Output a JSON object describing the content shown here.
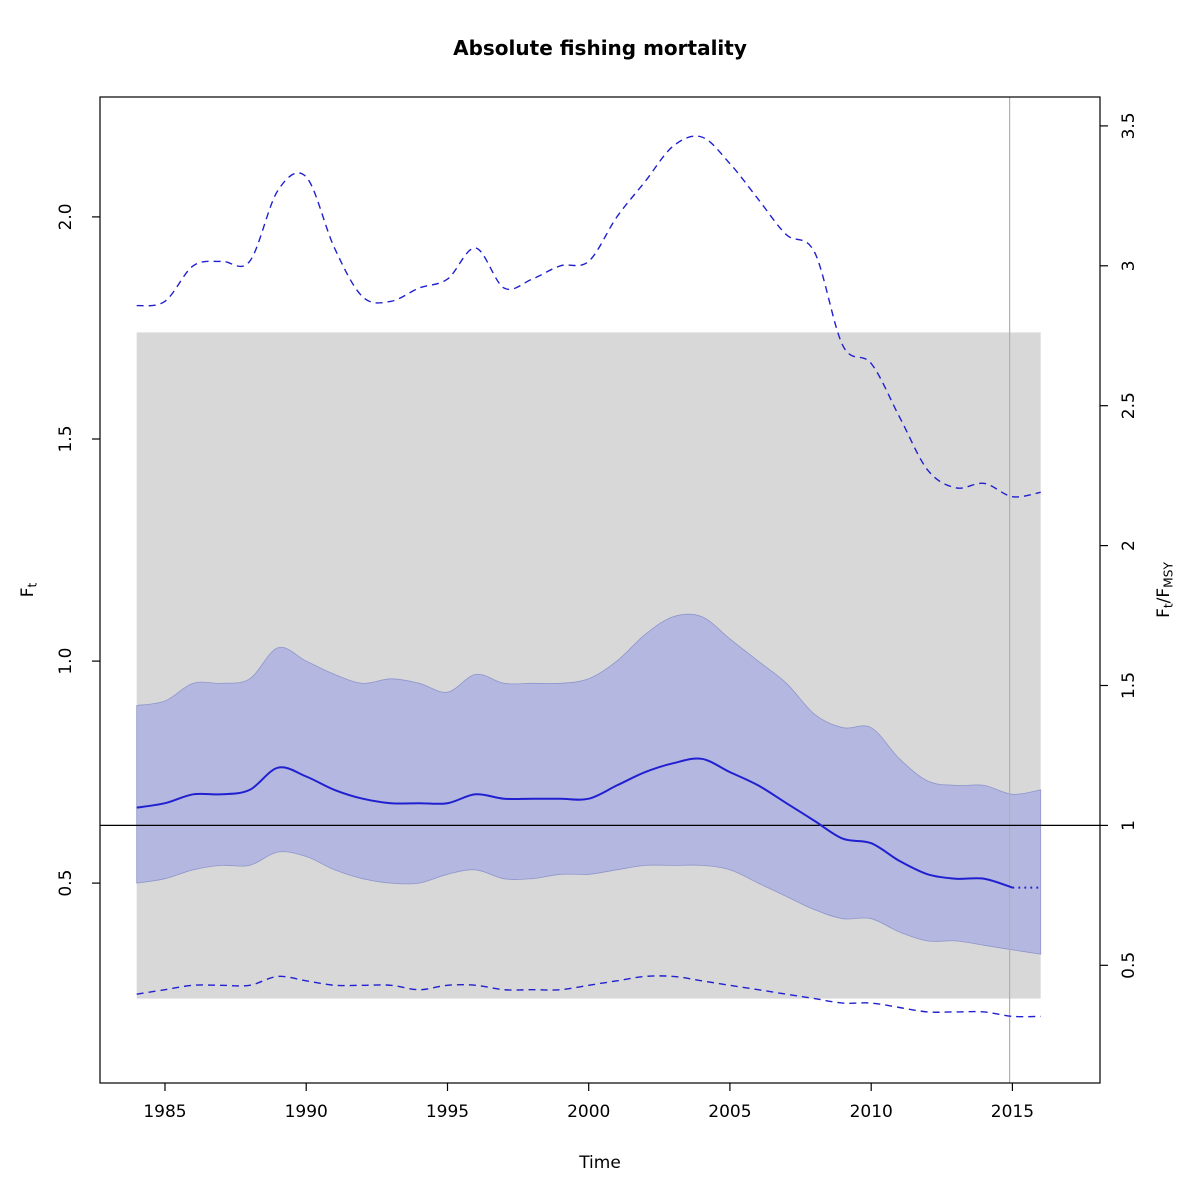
{
  "chart_data": {
    "type": "line",
    "title": "Absolute fishing mortality",
    "xlabel": "Time",
    "ylabel_left": "F_t",
    "ylabel_left_parts": [
      [
        "F",
        ""
      ],
      [
        "t",
        "sub"
      ]
    ],
    "ylabel_right": "F_t/F_MSY",
    "ylabel_right_parts": [
      [
        "F",
        ""
      ],
      [
        "t",
        "sub"
      ],
      [
        "/",
        ""
      ],
      [
        "F",
        ""
      ],
      [
        "MSY",
        "sub"
      ]
    ],
    "xlim": [
      1982.7,
      2018.1
    ],
    "ylim_left": [
      0.05,
      2.27
    ],
    "grid": false,
    "legend_position": "none",
    "x_ticks": [
      {
        "v": 1985,
        "label": "1985"
      },
      {
        "v": 1990,
        "label": "1990"
      },
      {
        "v": 1995,
        "label": "1995"
      },
      {
        "v": 2000,
        "label": "2000"
      },
      {
        "v": 2005,
        "label": "2005"
      },
      {
        "v": 2010,
        "label": "2010"
      },
      {
        "v": 2015,
        "label": "2015"
      }
    ],
    "y_ticks_left": [
      {
        "v": 0.5,
        "label": "0.5"
      },
      {
        "v": 1.0,
        "label": "1.0"
      },
      {
        "v": 1.5,
        "label": "1.5"
      },
      {
        "v": 2.0,
        "label": "2.0"
      }
    ],
    "y_ticks_right": [
      {
        "r": 0.5,
        "label": "0.5"
      },
      {
        "r": 1.0,
        "label": "1"
      },
      {
        "r": 1.5,
        "label": "1.5"
      },
      {
        "r": 2.0,
        "label": "2"
      },
      {
        "r": 2.5,
        "label": "2.5"
      },
      {
        "r": 3.0,
        "label": "3"
      },
      {
        "r": 3.5,
        "label": "3.5"
      }
    ],
    "fmsy": 0.63,
    "fmsy_ci": [
      0.24,
      1.74
    ],
    "vline_year": 2014.9,
    "years": [
      1984,
      1985,
      1986,
      1987,
      1988,
      1989,
      1990,
      1991,
      1992,
      1993,
      1994,
      1995,
      1996,
      1997,
      1998,
      1999,
      2000,
      2001,
      2002,
      2003,
      2004,
      2005,
      2006,
      2007,
      2008,
      2009,
      2010,
      2011,
      2012,
      2013,
      2014,
      2015,
      2016
    ],
    "series": [
      {
        "role": "median",
        "name": "F_t estimate (median)",
        "style": "solid",
        "dotted_from_year": 2015,
        "values": [
          0.67,
          0.68,
          0.7,
          0.7,
          0.71,
          0.76,
          0.74,
          0.71,
          0.69,
          0.68,
          0.68,
          0.68,
          0.7,
          0.69,
          0.69,
          0.69,
          0.69,
          0.72,
          0.75,
          0.77,
          0.78,
          0.75,
          0.72,
          0.68,
          0.64,
          0.6,
          0.59,
          0.55,
          0.52,
          0.51,
          0.51,
          0.49,
          0.49
        ]
      },
      {
        "role": "ci_upper",
        "name": "F_t 95% CI upper (shaded band)",
        "style": "band",
        "values": [
          0.9,
          0.91,
          0.95,
          0.95,
          0.96,
          1.03,
          1.0,
          0.97,
          0.95,
          0.96,
          0.95,
          0.93,
          0.97,
          0.95,
          0.95,
          0.95,
          0.96,
          1.0,
          1.06,
          1.1,
          1.1,
          1.05,
          1.0,
          0.95,
          0.88,
          0.85,
          0.85,
          0.78,
          0.73,
          0.72,
          0.72,
          0.7,
          0.71
        ]
      },
      {
        "role": "ci_lower",
        "name": "F_t 95% CI lower (shaded band)",
        "style": "band",
        "values": [
          0.5,
          0.51,
          0.53,
          0.54,
          0.54,
          0.57,
          0.56,
          0.53,
          0.51,
          0.5,
          0.5,
          0.52,
          0.53,
          0.51,
          0.51,
          0.52,
          0.52,
          0.53,
          0.54,
          0.54,
          0.54,
          0.53,
          0.5,
          0.47,
          0.44,
          0.42,
          0.42,
          0.39,
          0.37,
          0.37,
          0.36,
          0.35,
          0.34
        ]
      },
      {
        "role": "upper_dashed",
        "name": "upper dashed confidence line",
        "style": "dashed",
        "values": [
          1.8,
          1.81,
          1.89,
          1.9,
          1.9,
          2.06,
          2.09,
          1.93,
          1.82,
          1.81,
          1.84,
          1.86,
          1.93,
          1.84,
          1.86,
          1.89,
          1.9,
          2.0,
          2.08,
          2.16,
          2.18,
          2.12,
          2.04,
          1.96,
          1.92,
          1.71,
          1.67,
          1.55,
          1.43,
          1.39,
          1.4,
          1.37,
          1.38
        ]
      },
      {
        "role": "lower_dashed",
        "name": "lower dashed confidence line",
        "style": "dashed",
        "values": [
          0.25,
          0.26,
          0.27,
          0.27,
          0.27,
          0.29,
          0.28,
          0.27,
          0.27,
          0.27,
          0.26,
          0.27,
          0.27,
          0.26,
          0.26,
          0.26,
          0.27,
          0.28,
          0.29,
          0.29,
          0.28,
          0.27,
          0.26,
          0.25,
          0.24,
          0.23,
          0.23,
          0.22,
          0.21,
          0.21,
          0.21,
          0.2,
          0.2
        ]
      }
    ],
    "colors": {
      "line": "#2020d0",
      "band": "#b4b7e0",
      "band_edge": "#8f96cc",
      "fmsy_band": "#d8d8d8",
      "fmsy_line": "#000000",
      "vline": "#b0b0b0",
      "box": "#000000"
    }
  }
}
